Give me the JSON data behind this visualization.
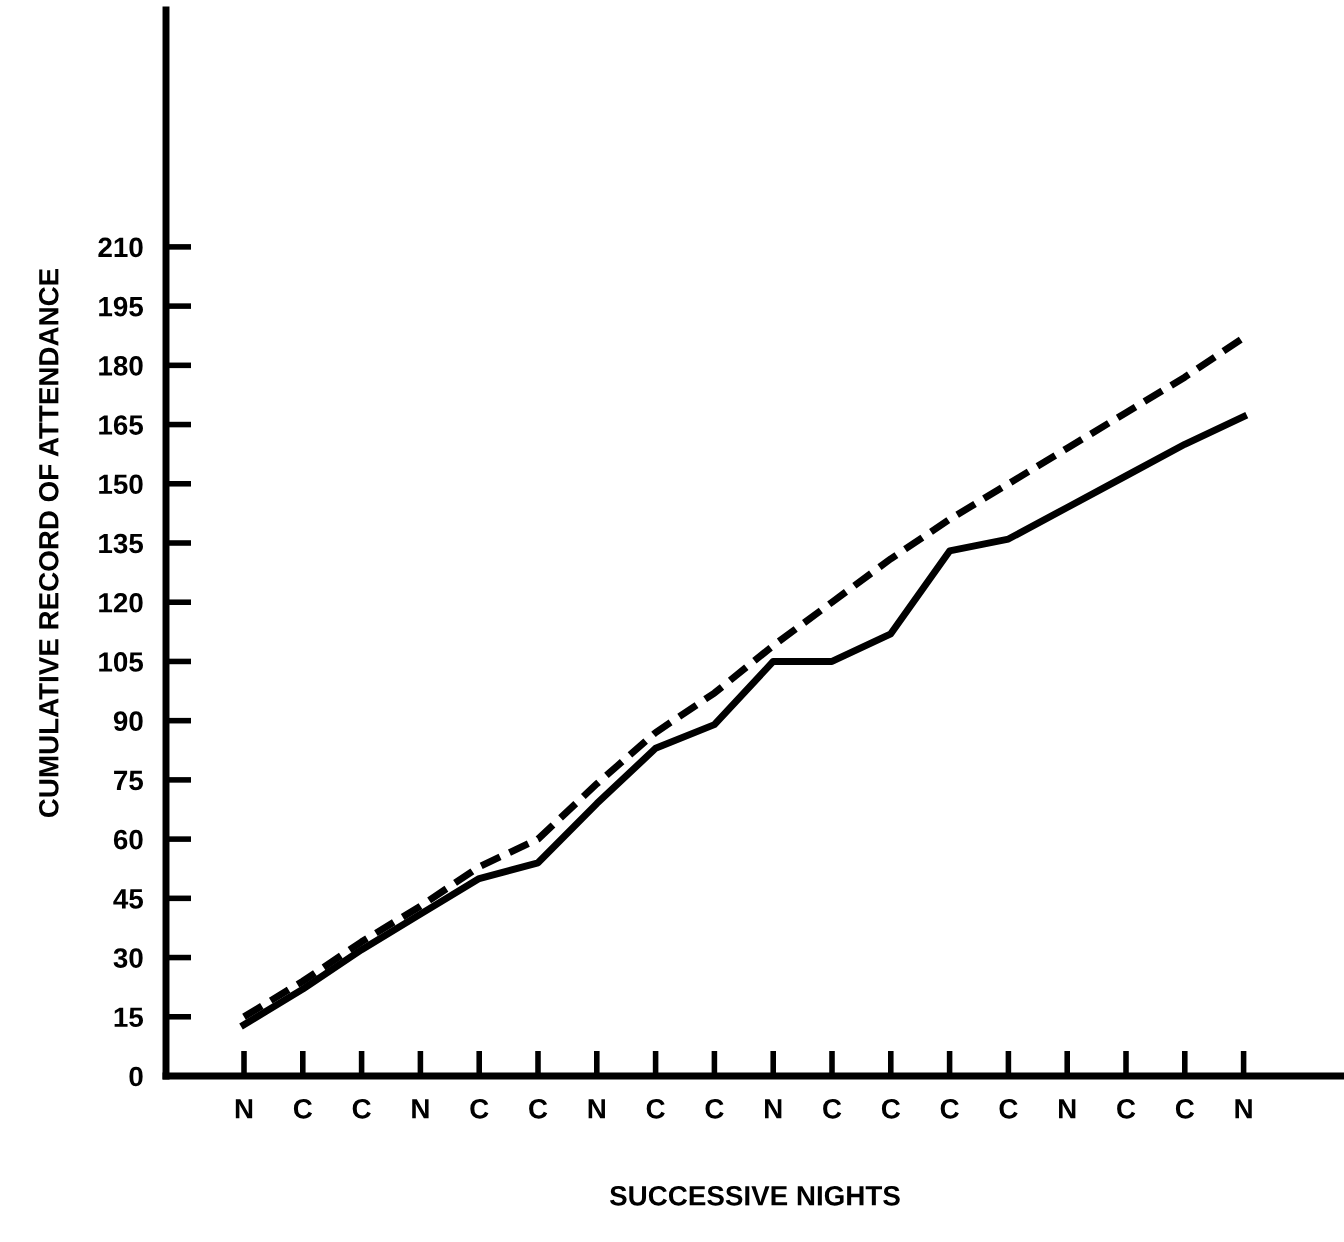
{
  "chart_data": {
    "type": "line",
    "xlabel": "SUCCESSIVE NIGHTS",
    "ylabel": "CUMULATIVE RECORD OF ATTENDANCE",
    "categories": [
      "N",
      "C",
      "C",
      "N",
      "C",
      "C",
      "N",
      "C",
      "C",
      "N",
      "C",
      "C",
      "C",
      "C",
      "N",
      "C",
      "C",
      "N"
    ],
    "series": [
      {
        "color": "#000000",
        "line_style": "solid",
        "values": [
          13,
          22,
          32,
          41,
          50,
          54,
          69,
          83,
          89,
          105,
          105,
          112,
          133,
          136,
          144,
          152,
          160,
          167
        ]
      },
      {
        "color": "#000000",
        "line_style": "dashed",
        "values": [
          15,
          24,
          34,
          43,
          53,
          60,
          74,
          87,
          97,
          109,
          120,
          131,
          141,
          150,
          159,
          168,
          177,
          187
        ]
      }
    ],
    "ylim": [
      0,
      270
    ],
    "yticks": [
      0,
      15,
      30,
      45,
      60,
      75,
      90,
      105,
      120,
      135,
      150,
      165,
      180,
      195,
      210
    ],
    "grid": false,
    "legend": false,
    "marker": "none"
  }
}
